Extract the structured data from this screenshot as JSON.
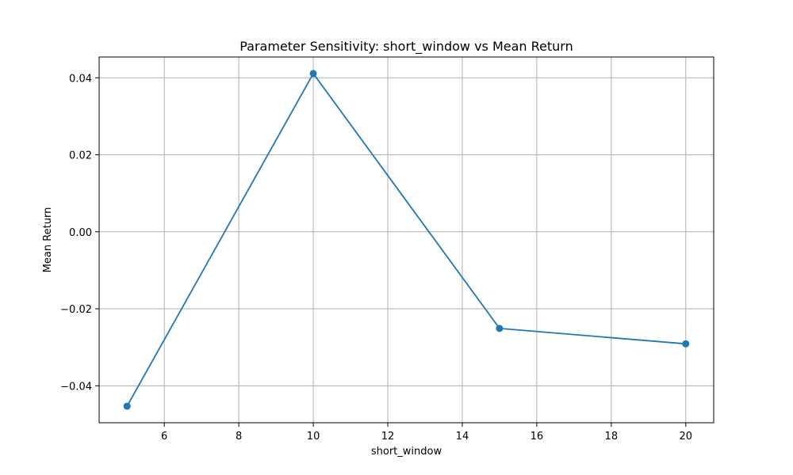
{
  "chart_data": {
    "type": "line",
    "title": "Parameter Sensitivity: short_window vs Mean Return",
    "xlabel": "short_window",
    "ylabel": "Mean Return",
    "x": [
      5,
      10,
      15,
      20
    ],
    "series": [
      {
        "values": [
          -0.0453,
          0.0411,
          -0.0251,
          -0.0291
        ],
        "color": "#1f77b4",
        "marker": "circle"
      }
    ],
    "xlim": [
      4.25,
      20.75
    ],
    "ylim": [
      -0.0496,
      0.0454
    ],
    "xticks": [
      6,
      8,
      10,
      12,
      14,
      16,
      18,
      20
    ],
    "xtick_labels": [
      "6",
      "8",
      "10",
      "12",
      "14",
      "16",
      "18",
      "20"
    ],
    "yticks": [
      -0.04,
      -0.02,
      0.0,
      0.02,
      0.04
    ],
    "ytick_labels": [
      "−0.04",
      "−0.02",
      "0.00",
      "0.02",
      "0.04"
    ],
    "grid": true,
    "legend": null
  }
}
